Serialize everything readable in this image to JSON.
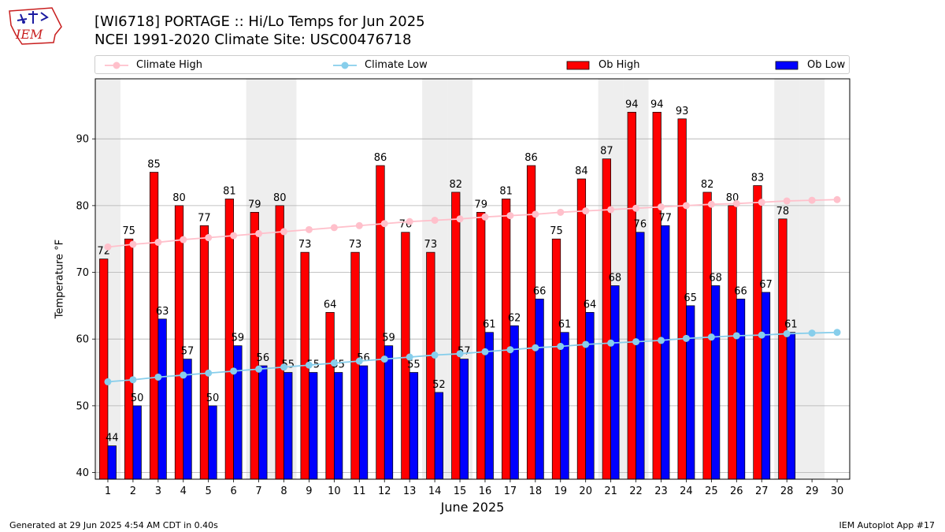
{
  "header": {
    "title_line1": "[WI6718] PORTAGE :: Hi/Lo Temps for Jun 2025",
    "title_line2": "NCEI 1991-2020 Climate Site: USC00476718",
    "logo_text": "IEM"
  },
  "legend": {
    "climate_high": "Climate High",
    "climate_low": "Climate Low",
    "ob_high": "Ob High",
    "ob_low": "Ob Low"
  },
  "colors": {
    "ob_high": "#ff0000",
    "ob_low": "#0000ff",
    "climate_high": "#ffc0cb",
    "climate_low": "#87ceeb",
    "weekend_shade": "#eeeeee",
    "grid": "#b0b0b0"
  },
  "footer": {
    "generated": "Generated at 29 Jun 2025 4:54 AM CDT in 0.40s",
    "app": "IEM Autoplot App #17"
  },
  "chart_data": {
    "type": "bar",
    "xlabel": "June 2025",
    "ylabel": "Temperature °F",
    "ylim": [
      39,
      99
    ],
    "yticks": [
      40,
      50,
      60,
      70,
      80,
      90
    ],
    "grid": "horizontal",
    "legend_position": "top",
    "categories": [
      1,
      2,
      3,
      4,
      5,
      6,
      7,
      8,
      9,
      10,
      11,
      12,
      13,
      14,
      15,
      16,
      17,
      18,
      19,
      20,
      21,
      22,
      23,
      24,
      25,
      26,
      27,
      28,
      29,
      30
    ],
    "shaded_days": [
      1,
      7,
      8,
      14,
      15,
      21,
      22,
      28,
      29
    ],
    "series": [
      {
        "name": "Ob High",
        "kind": "bar",
        "values": [
          72,
          75,
          85,
          80,
          77,
          81,
          79,
          80,
          73,
          64,
          73,
          86,
          76,
          73,
          82,
          79,
          81,
          86,
          75,
          84,
          87,
          94,
          94,
          93,
          82,
          80,
          83,
          78,
          null,
          null
        ]
      },
      {
        "name": "Ob Low",
        "kind": "bar",
        "values": [
          44,
          50,
          63,
          57,
          50,
          59,
          56,
          55,
          55,
          55,
          56,
          59,
          55,
          52,
          57,
          61,
          62,
          66,
          61,
          64,
          68,
          76,
          77,
          65,
          68,
          66,
          67,
          61,
          null,
          null
        ]
      },
      {
        "name": "Climate High",
        "kind": "line",
        "values": [
          73.8,
          74.2,
          74.5,
          74.9,
          75.2,
          75.5,
          75.8,
          76.1,
          76.4,
          76.7,
          77.0,
          77.3,
          77.6,
          77.8,
          78.0,
          78.3,
          78.5,
          78.7,
          79.0,
          79.2,
          79.4,
          79.6,
          79.8,
          80.0,
          80.2,
          80.3,
          80.5,
          80.7,
          80.8,
          80.9
        ]
      },
      {
        "name": "Climate Low",
        "kind": "line",
        "values": [
          53.6,
          53.9,
          54.3,
          54.6,
          54.9,
          55.2,
          55.5,
          55.8,
          56.1,
          56.4,
          56.7,
          57.0,
          57.3,
          57.6,
          57.8,
          58.1,
          58.4,
          58.7,
          58.9,
          59.2,
          59.4,
          59.6,
          59.8,
          60.1,
          60.3,
          60.5,
          60.6,
          60.8,
          60.9,
          61.0
        ]
      }
    ]
  }
}
